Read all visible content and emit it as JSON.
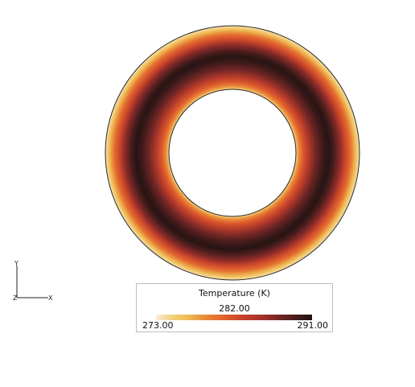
{
  "scalar_bar": {
    "title": "Temperature (K)",
    "mid_label": "282.00",
    "min_label": "273.00",
    "max_label": "291.00",
    "min_value": 273.0,
    "mid_value": 282.0,
    "max_value": 291.0
  },
  "axes_triad": {
    "vertical_label": "Y",
    "horizontal_label": "X",
    "depth_label": "Z"
  },
  "colors": {
    "outline": "#2a2a2a",
    "cold": "#fbecdc",
    "mid": "#e15d2a",
    "hot": "#221212"
  }
}
